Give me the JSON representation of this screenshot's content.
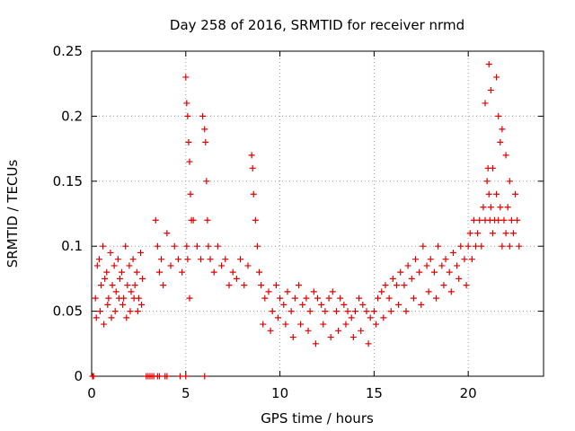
{
  "chart_data": {
    "type": "scatter",
    "title": "Day 258 of 2016, SRMTID for receiver nrmd",
    "xlabel": "GPS time / hours",
    "ylabel": "SRMTID / TECUs",
    "xlim": [
      0,
      24
    ],
    "ylim": [
      0,
      0.25
    ],
    "grid": true,
    "marker": "+",
    "x_ticks": [
      0,
      5,
      10,
      15,
      20
    ],
    "x_tick_labels": [
      "0",
      "5",
      "10",
      "15",
      "20"
    ],
    "y_ticks": [
      0,
      0.05,
      0.1,
      0.15,
      0.2,
      0.25
    ],
    "y_tick_labels": [
      "0",
      "0.05",
      "0.1",
      "0.15",
      "0.2",
      "0.25"
    ],
    "series_color": "#e00000",
    "series": [
      {
        "name": "SRMTID",
        "x": [
          0.05,
          0.1,
          2.9,
          3.0,
          3.1,
          3.2,
          3.3,
          3.5,
          3.6,
          3.9,
          4.0,
          4.7,
          5.0,
          6.0,
          0.2,
          0.3,
          0.4,
          0.5,
          0.6,
          0.7,
          0.8,
          0.9,
          1.0,
          1.1,
          1.2,
          1.3,
          1.4,
          1.5,
          1.6,
          1.7,
          1.8,
          1.9,
          2.0,
          2.1,
          2.2,
          2.3,
          2.4,
          2.5,
          2.6,
          2.7,
          0.25,
          0.45,
          0.65,
          0.85,
          1.05,
          1.25,
          1.45,
          1.65,
          1.85,
          2.05,
          2.25,
          2.45,
          2.65,
          3.4,
          3.5,
          3.6,
          3.7,
          3.8,
          4.0,
          4.2,
          4.4,
          4.6,
          4.8,
          5.0,
          5.05,
          5.1,
          5.15,
          5.2,
          5.25,
          5.3,
          5.05,
          5.1,
          5.2,
          5.4,
          5.6,
          5.8,
          5.9,
          6.0,
          6.05,
          6.1,
          6.15,
          6.2,
          6.3,
          6.5,
          6.7,
          6.9,
          7.1,
          7.3,
          7.5,
          7.7,
          7.9,
          8.1,
          8.3,
          8.5,
          8.55,
          8.6,
          8.7,
          8.8,
          8.9,
          9.0,
          9.2,
          9.4,
          9.6,
          9.8,
          10.0,
          10.2,
          10.4,
          10.6,
          10.8,
          11.0,
          11.2,
          11.4,
          11.6,
          11.8,
          12.0,
          12.2,
          12.4,
          12.6,
          12.8,
          13.0,
          13.2,
          13.4,
          13.6,
          13.8,
          14.0,
          14.2,
          14.4,
          14.6,
          14.8,
          9.1,
          9.5,
          9.9,
          10.3,
          10.7,
          11.1,
          11.5,
          11.9,
          12.3,
          12.7,
          13.1,
          13.5,
          13.9,
          14.3,
          14.7,
          15.0,
          15.2,
          15.4,
          15.6,
          15.8,
          16.0,
          16.2,
          16.4,
          16.6,
          16.8,
          17.0,
          17.2,
          17.4,
          17.6,
          17.8,
          18.0,
          18.2,
          18.4,
          18.6,
          18.8,
          19.0,
          19.2,
          19.4,
          19.6,
          19.8,
          15.1,
          15.5,
          15.9,
          16.3,
          16.7,
          17.1,
          17.5,
          17.9,
          18.3,
          18.7,
          19.1,
          19.5,
          19.9,
          20.0,
          20.1,
          20.2,
          20.3,
          20.4,
          20.5,
          20.6,
          20.7,
          20.8,
          20.9,
          21.0,
          21.05,
          21.1,
          21.15,
          21.2,
          21.3,
          21.4,
          21.5,
          21.6,
          21.7,
          21.8,
          21.9,
          22.0,
          22.1,
          22.2,
          22.3,
          22.4,
          22.5,
          22.6,
          22.7,
          21.1,
          21.2,
          21.5,
          21.6,
          21.7,
          21.8,
          22.0,
          22.2,
          20.9,
          21.3
        ],
        "y": [
          0.0,
          0.0,
          0.0,
          0.0,
          0.0,
          0.0,
          0.0,
          0.0,
          0.0,
          0.0,
          0.0,
          0.0,
          0.0,
          0.0,
          0.06,
          0.085,
          0.09,
          0.07,
          0.1,
          0.075,
          0.08,
          0.06,
          0.095,
          0.07,
          0.085,
          0.065,
          0.09,
          0.075,
          0.08,
          0.06,
          0.1,
          0.07,
          0.085,
          0.065,
          0.09,
          0.07,
          0.08,
          0.06,
          0.095,
          0.075,
          0.045,
          0.05,
          0.04,
          0.055,
          0.045,
          0.05,
          0.06,
          0.055,
          0.045,
          0.05,
          0.06,
          0.05,
          0.055,
          0.12,
          0.1,
          0.08,
          0.09,
          0.07,
          0.11,
          0.085,
          0.1,
          0.09,
          0.08,
          0.23,
          0.21,
          0.2,
          0.18,
          0.165,
          0.14,
          0.12,
          0.1,
          0.09,
          0.06,
          0.12,
          0.1,
          0.09,
          0.2,
          0.19,
          0.18,
          0.15,
          0.12,
          0.1,
          0.09,
          0.08,
          0.1,
          0.085,
          0.09,
          0.07,
          0.08,
          0.075,
          0.09,
          0.07,
          0.085,
          0.17,
          0.16,
          0.14,
          0.12,
          0.1,
          0.08,
          0.07,
          0.06,
          0.065,
          0.05,
          0.07,
          0.06,
          0.055,
          0.065,
          0.05,
          0.06,
          0.07,
          0.055,
          0.06,
          0.05,
          0.065,
          0.06,
          0.055,
          0.05,
          0.06,
          0.065,
          0.05,
          0.06,
          0.055,
          0.05,
          0.045,
          0.05,
          0.06,
          0.055,
          0.05,
          0.045,
          0.04,
          0.035,
          0.045,
          0.04,
          0.03,
          0.04,
          0.035,
          0.025,
          0.04,
          0.03,
          0.035,
          0.04,
          0.03,
          0.035,
          0.025,
          0.05,
          0.06,
          0.065,
          0.07,
          0.06,
          0.075,
          0.07,
          0.08,
          0.07,
          0.085,
          0.075,
          0.09,
          0.08,
          0.1,
          0.085,
          0.09,
          0.08,
          0.1,
          0.085,
          0.09,
          0.08,
          0.095,
          0.085,
          0.1,
          0.09,
          0.04,
          0.045,
          0.05,
          0.055,
          0.05,
          0.06,
          0.055,
          0.065,
          0.06,
          0.07,
          0.065,
          0.075,
          0.07,
          0.1,
          0.11,
          0.09,
          0.12,
          0.1,
          0.11,
          0.12,
          0.1,
          0.13,
          0.12,
          0.15,
          0.16,
          0.14,
          0.12,
          0.13,
          0.11,
          0.12,
          0.14,
          0.12,
          0.13,
          0.1,
          0.12,
          0.11,
          0.13,
          0.1,
          0.12,
          0.11,
          0.14,
          0.12,
          0.1,
          0.24,
          0.22,
          0.23,
          0.2,
          0.18,
          0.19,
          0.17,
          0.15,
          0.21,
          0.16
        ]
      }
    ]
  }
}
